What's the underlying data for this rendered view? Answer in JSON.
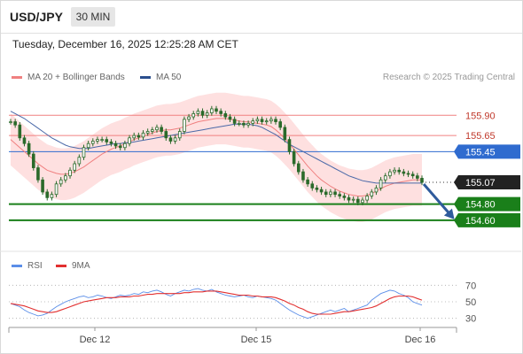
{
  "header": {
    "symbol": "USD/JPY",
    "timeframe": "30 MIN"
  },
  "datetime": "Tuesday, December 16, 2025 12:25:28 AM CET",
  "legend": {
    "ma_bollinger": "MA 20 + Bollinger Bands",
    "ma50": "MA 50",
    "credit": "Research © 2025 Trading Central"
  },
  "rsi_legend": {
    "rsi": "RSI",
    "ma": "9MA"
  },
  "colors": {
    "bollinger": "#fdd5d5",
    "ma20": "#f08080",
    "ma50": "#4a69a8",
    "resistance": "#f08080",
    "pivot": "#2f6bcf",
    "support": "#1a7f1a",
    "arrow": "#2f5b9c",
    "rsi": "#5b8ee8",
    "rsi_ma": "#e23030",
    "candle": "#2a6a2a"
  },
  "chart_data": [
    {
      "type": "line",
      "panel": "price",
      "x_ticks": [
        "Dec 12",
        "Dec 15",
        "Dec 16"
      ],
      "ylim": [
        154.5,
        156.1
      ],
      "levels": [
        {
          "label": "155.90",
          "value": 155.9,
          "kind": "resistance"
        },
        {
          "label": "155.65",
          "value": 155.65,
          "kind": "resistance"
        },
        {
          "label": "155.45",
          "value": 155.45,
          "kind": "pivot"
        },
        {
          "label": "155.07",
          "value": 155.07,
          "kind": "last"
        },
        {
          "label": "154.80",
          "value": 154.8,
          "kind": "support"
        },
        {
          "label": "154.60",
          "value": 154.6,
          "kind": "support"
        }
      ],
      "close": [
        155.82,
        155.78,
        155.62,
        155.55,
        155.42,
        155.25,
        155.1,
        154.95,
        154.88,
        154.92,
        155.05,
        155.1,
        155.15,
        155.22,
        155.3,
        155.38,
        155.5,
        155.55,
        155.58,
        155.6,
        155.6,
        155.57,
        155.55,
        155.52,
        155.5,
        155.55,
        155.62,
        155.65,
        155.63,
        155.68,
        155.7,
        155.72,
        155.75,
        155.7,
        155.62,
        155.58,
        155.62,
        155.7,
        155.85,
        155.88,
        155.92,
        155.95,
        155.9,
        155.93,
        155.98,
        155.95,
        155.92,
        155.88,
        155.85,
        155.8,
        155.8,
        155.78,
        155.8,
        155.83,
        155.85,
        155.82,
        155.83,
        155.85,
        155.82,
        155.75,
        155.6,
        155.45,
        155.3,
        155.2,
        155.1,
        155.05,
        155.0,
        154.98,
        154.95,
        154.92,
        154.95,
        154.92,
        154.9,
        154.88,
        154.85,
        154.86,
        154.82,
        154.85,
        154.9,
        154.95,
        155.0,
        155.1,
        155.15,
        155.2,
        155.22,
        155.2,
        155.18,
        155.17,
        155.15,
        155.12,
        155.07
      ],
      "ma20": [
        155.6,
        155.55,
        155.5,
        155.45,
        155.4,
        155.35,
        155.3,
        155.26,
        155.22,
        155.2,
        155.18,
        155.17,
        155.17,
        155.18,
        155.2,
        155.23,
        155.26,
        155.3,
        155.34,
        155.38,
        155.42,
        155.45,
        155.48,
        155.5,
        155.52,
        155.55,
        155.57,
        155.6,
        155.62,
        155.64,
        155.66,
        155.68,
        155.7,
        155.71,
        155.72,
        155.72,
        155.73,
        155.74,
        155.76,
        155.78,
        155.8,
        155.82,
        155.83,
        155.84,
        155.85,
        155.86,
        155.86,
        155.86,
        155.85,
        155.84,
        155.83,
        155.82,
        155.82,
        155.81,
        155.8,
        155.79,
        155.78,
        155.76,
        155.72,
        155.67,
        155.61,
        155.55,
        155.48,
        155.41,
        155.34,
        155.27,
        155.21,
        155.15,
        155.1,
        155.06,
        155.02,
        154.99,
        154.96,
        154.94,
        154.92,
        154.91,
        154.9,
        154.9,
        154.91,
        154.93,
        154.96,
        154.99,
        155.02,
        155.04,
        155.06,
        155.07,
        155.08,
        155.09,
        155.1,
        155.1,
        155.1
      ],
      "ma50": [
        155.95,
        155.92,
        155.89,
        155.86,
        155.82,
        155.78,
        155.74,
        155.7,
        155.66,
        155.62,
        155.59,
        155.56,
        155.53,
        155.51,
        155.5,
        155.49,
        155.49,
        155.49,
        155.5,
        155.51,
        155.52,
        155.53,
        155.54,
        155.55,
        155.55,
        155.56,
        155.56,
        155.57,
        155.58,
        155.59,
        155.6,
        155.61,
        155.62,
        155.63,
        155.64,
        155.65,
        155.66,
        155.67,
        155.68,
        155.69,
        155.7,
        155.71,
        155.72,
        155.73,
        155.74,
        155.75,
        155.76,
        155.77,
        155.78,
        155.79,
        155.79,
        155.79,
        155.79,
        155.78,
        155.77,
        155.75,
        155.72,
        155.69,
        155.66,
        155.62,
        155.58,
        155.54,
        155.51,
        155.48,
        155.45,
        155.42,
        155.39,
        155.36,
        155.33,
        155.3,
        155.27,
        155.24,
        155.21,
        155.18,
        155.15,
        155.13,
        155.11,
        155.09,
        155.08,
        155.07,
        155.06,
        155.06,
        155.06,
        155.06,
        155.06,
        155.06,
        155.06,
        155.06,
        155.06,
        155.06,
        155.06
      ],
      "band_width": 0.32,
      "forecast_arrow": {
        "from": 155.07,
        "to": 154.6
      }
    },
    {
      "type": "line",
      "panel": "rsi",
      "ylim": [
        20,
        80
      ],
      "y_ticks": [
        "70",
        "50",
        "30"
      ],
      "rsi": [
        48,
        46,
        44,
        40,
        37,
        35,
        33,
        34,
        36,
        40,
        44,
        47,
        50,
        52,
        54,
        56,
        57,
        55,
        56,
        58,
        57,
        55,
        54,
        56,
        58,
        57,
        58,
        60,
        59,
        62,
        61,
        63,
        64,
        62,
        59,
        57,
        60,
        62,
        64,
        63,
        65,
        66,
        64,
        63,
        65,
        62,
        60,
        58,
        57,
        56,
        57,
        58,
        56,
        55,
        57,
        56,
        55,
        54,
        52,
        48,
        44,
        40,
        37,
        34,
        32,
        30,
        32,
        34,
        36,
        38,
        40,
        38,
        40,
        42,
        38,
        40,
        42,
        44,
        46,
        52,
        56,
        60,
        62,
        64,
        63,
        60,
        58,
        55,
        50,
        48,
        46
      ],
      "ma9": [
        48,
        47,
        46,
        45,
        43,
        41,
        39,
        38,
        37,
        37,
        38,
        40,
        42,
        44,
        46,
        48,
        50,
        51,
        52,
        53,
        54,
        55,
        55,
        55,
        56,
        56,
        56,
        57,
        57,
        58,
        59,
        59,
        60,
        60,
        60,
        60,
        60,
        60,
        61,
        61,
        62,
        62,
        62,
        63,
        63,
        63,
        62,
        61,
        60,
        59,
        58,
        58,
        58,
        57,
        57,
        56,
        56,
        56,
        55,
        53,
        51,
        48,
        46,
        43,
        41,
        38,
        36,
        35,
        35,
        35,
        35,
        36,
        37,
        38,
        38,
        39,
        40,
        41,
        42,
        43,
        45,
        48,
        51,
        54,
        56,
        57,
        57,
        57,
        56,
        54,
        52
      ]
    }
  ]
}
